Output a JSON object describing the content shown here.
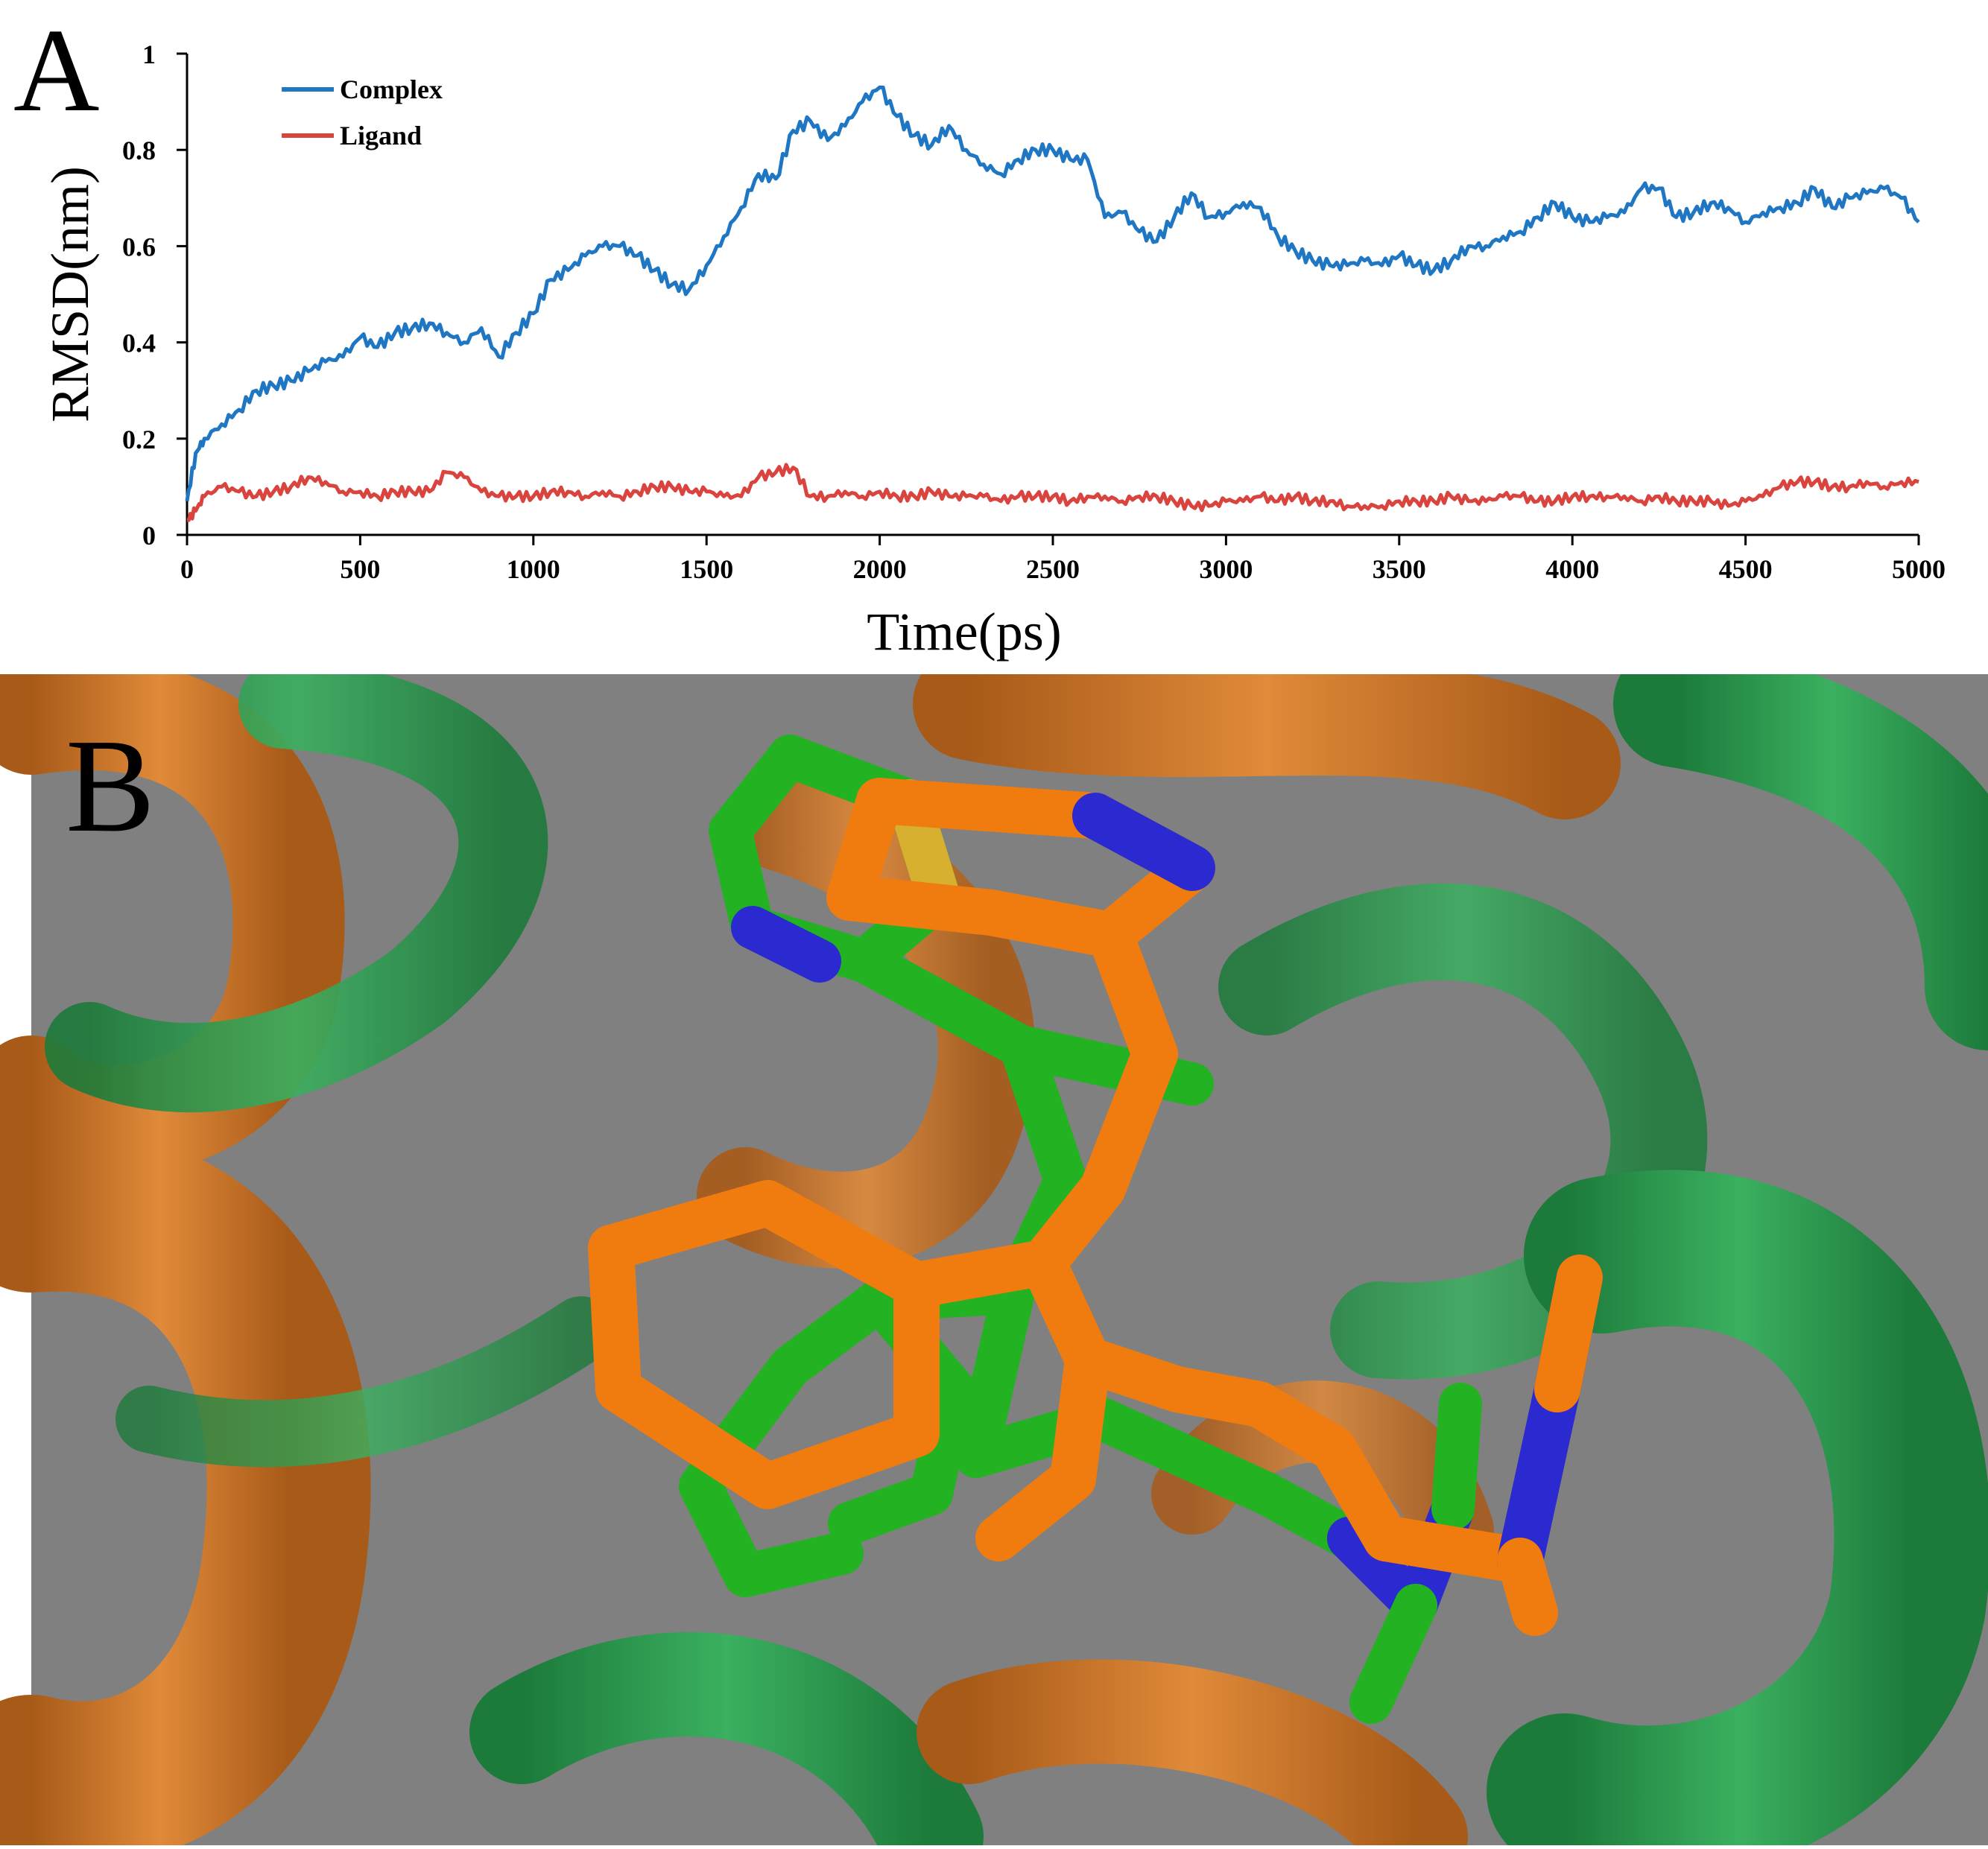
{
  "panel_a": {
    "label": "A"
  },
  "panel_b": {
    "label": "B"
  },
  "chart_data": {
    "type": "line",
    "title": "",
    "xlabel": "Time(ps)",
    "ylabel": "RMSD(nm)",
    "xlim": [
      0,
      5000
    ],
    "ylim": [
      0,
      1
    ],
    "xticks": [
      0,
      500,
      1000,
      1500,
      2000,
      2500,
      3000,
      3500,
      4000,
      4500,
      5000
    ],
    "yticks": [
      0,
      0.2,
      0.4,
      0.6,
      0.8,
      1
    ],
    "ytick_labels": [
      "0",
      "0.2",
      "0.4",
      "0.6",
      "0.8",
      "1"
    ],
    "grid": false,
    "legend_position": "top-left",
    "series": [
      {
        "name": "Complex",
        "color": "#1f77c4",
        "x": [
          0,
          25,
          50,
          100,
          150,
          200,
          250,
          300,
          350,
          400,
          450,
          500,
          550,
          600,
          650,
          700,
          750,
          800,
          850,
          900,
          950,
          1000,
          1050,
          1100,
          1150,
          1200,
          1250,
          1300,
          1350,
          1400,
          1450,
          1500,
          1550,
          1600,
          1650,
          1700,
          1750,
          1800,
          1850,
          1900,
          1950,
          2000,
          2050,
          2100,
          2150,
          2200,
          2250,
          2300,
          2350,
          2400,
          2450,
          2500,
          2550,
          2600,
          2650,
          2700,
          2750,
          2800,
          2850,
          2900,
          2950,
          3000,
          3050,
          3100,
          3150,
          3200,
          3250,
          3300,
          3350,
          3400,
          3450,
          3500,
          3550,
          3600,
          3650,
          3700,
          3750,
          3800,
          3850,
          3900,
          3950,
          4000,
          4050,
          4100,
          4150,
          4200,
          4250,
          4300,
          4350,
          4400,
          4450,
          4500,
          4550,
          4600,
          4650,
          4700,
          4750,
          4800,
          4850,
          4900,
          4950,
          5000
        ],
        "values": [
          0.07,
          0.17,
          0.2,
          0.23,
          0.26,
          0.3,
          0.31,
          0.32,
          0.34,
          0.36,
          0.37,
          0.41,
          0.39,
          0.42,
          0.43,
          0.44,
          0.42,
          0.4,
          0.43,
          0.37,
          0.42,
          0.46,
          0.53,
          0.55,
          0.58,
          0.6,
          0.6,
          0.58,
          0.55,
          0.52,
          0.51,
          0.56,
          0.62,
          0.68,
          0.75,
          0.74,
          0.84,
          0.86,
          0.82,
          0.85,
          0.9,
          0.93,
          0.87,
          0.83,
          0.81,
          0.85,
          0.8,
          0.77,
          0.75,
          0.78,
          0.8,
          0.8,
          0.78,
          0.78,
          0.66,
          0.67,
          0.63,
          0.61,
          0.66,
          0.71,
          0.66,
          0.67,
          0.69,
          0.68,
          0.62,
          0.59,
          0.57,
          0.56,
          0.56,
          0.57,
          0.56,
          0.58,
          0.56,
          0.55,
          0.57,
          0.6,
          0.6,
          0.62,
          0.63,
          0.66,
          0.69,
          0.66,
          0.65,
          0.66,
          0.67,
          0.72,
          0.72,
          0.66,
          0.67,
          0.69,
          0.68,
          0.65,
          0.67,
          0.68,
          0.69,
          0.72,
          0.68,
          0.7,
          0.71,
          0.72,
          0.7,
          0.65
        ]
      },
      {
        "name": "Ligand",
        "color": "#d9443f",
        "x": [
          0,
          25,
          50,
          100,
          150,
          200,
          250,
          300,
          350,
          400,
          450,
          500,
          550,
          600,
          650,
          700,
          750,
          800,
          850,
          900,
          950,
          1000,
          1050,
          1100,
          1150,
          1200,
          1250,
          1300,
          1350,
          1400,
          1450,
          1500,
          1550,
          1600,
          1650,
          1700,
          1750,
          1800,
          1850,
          1900,
          1950,
          2000,
          2050,
          2100,
          2150,
          2200,
          2250,
          2300,
          2350,
          2400,
          2450,
          2500,
          2550,
          2600,
          2650,
          2700,
          2750,
          2800,
          2850,
          2900,
          2950,
          3000,
          3050,
          3100,
          3150,
          3200,
          3250,
          3300,
          3350,
          3400,
          3450,
          3500,
          3550,
          3600,
          3650,
          3700,
          3750,
          3800,
          3850,
          3900,
          3950,
          4000,
          4050,
          4100,
          4150,
          4200,
          4250,
          4300,
          4350,
          4400,
          4450,
          4500,
          4550,
          4600,
          4650,
          4700,
          4750,
          4800,
          4850,
          4900,
          4950,
          5000
        ],
        "values": [
          0.03,
          0.05,
          0.08,
          0.1,
          0.09,
          0.08,
          0.09,
          0.1,
          0.12,
          0.11,
          0.09,
          0.09,
          0.08,
          0.09,
          0.09,
          0.09,
          0.13,
          0.12,
          0.09,
          0.08,
          0.08,
          0.08,
          0.09,
          0.09,
          0.08,
          0.09,
          0.08,
          0.09,
          0.1,
          0.1,
          0.09,
          0.09,
          0.08,
          0.08,
          0.12,
          0.13,
          0.14,
          0.08,
          0.08,
          0.09,
          0.08,
          0.09,
          0.08,
          0.08,
          0.09,
          0.08,
          0.08,
          0.08,
          0.07,
          0.08,
          0.08,
          0.08,
          0.07,
          0.08,
          0.08,
          0.07,
          0.08,
          0.08,
          0.07,
          0.06,
          0.06,
          0.07,
          0.07,
          0.08,
          0.07,
          0.08,
          0.07,
          0.07,
          0.06,
          0.06,
          0.06,
          0.07,
          0.07,
          0.07,
          0.08,
          0.07,
          0.07,
          0.08,
          0.08,
          0.07,
          0.07,
          0.08,
          0.08,
          0.08,
          0.08,
          0.07,
          0.08,
          0.07,
          0.07,
          0.07,
          0.06,
          0.07,
          0.08,
          0.1,
          0.11,
          0.11,
          0.1,
          0.1,
          0.11,
          0.1,
          0.11,
          0.11
        ]
      }
    ]
  }
}
